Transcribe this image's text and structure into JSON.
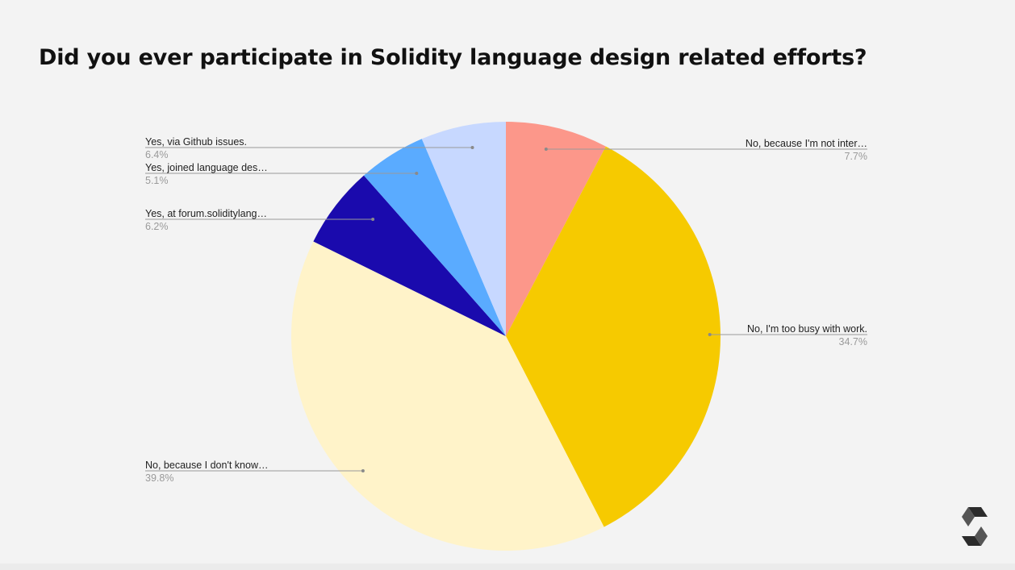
{
  "slide": {
    "title": "Did you ever participate in Solidity language design related efforts?"
  },
  "logo": {
    "icon": "solidity-logo-icon",
    "color": "#2b2b2b"
  },
  "chart_data": {
    "type": "pie",
    "title": "Did you ever participate in Solidity language design related efforts?",
    "start_angle_deg": 0,
    "direction": "clockwise",
    "slices": [
      {
        "label": "No, because I'm not inter…",
        "value": 7.7,
        "pct_label": "7.7%",
        "color": "#fc978a",
        "side": "right"
      },
      {
        "label": "No, I'm too busy with work.",
        "value": 34.7,
        "pct_label": "34.7%",
        "color": "#f6ca00",
        "side": "right"
      },
      {
        "label": "No, because I don't know…",
        "value": 39.8,
        "pct_label": "39.8%",
        "color": "#fff3c9",
        "side": "left"
      },
      {
        "label": "Yes, at forum.soliditylang…",
        "value": 6.2,
        "pct_label": "6.2%",
        "color": "#1a0aad",
        "side": "left"
      },
      {
        "label": "Yes, joined language des…",
        "value": 5.1,
        "pct_label": "5.1%",
        "color": "#5aabff",
        "side": "left"
      },
      {
        "label": "Yes, via Github issues.",
        "value": 6.4,
        "pct_label": "6.4%",
        "color": "#c7d8ff",
        "side": "left"
      }
    ],
    "legend": "none"
  }
}
